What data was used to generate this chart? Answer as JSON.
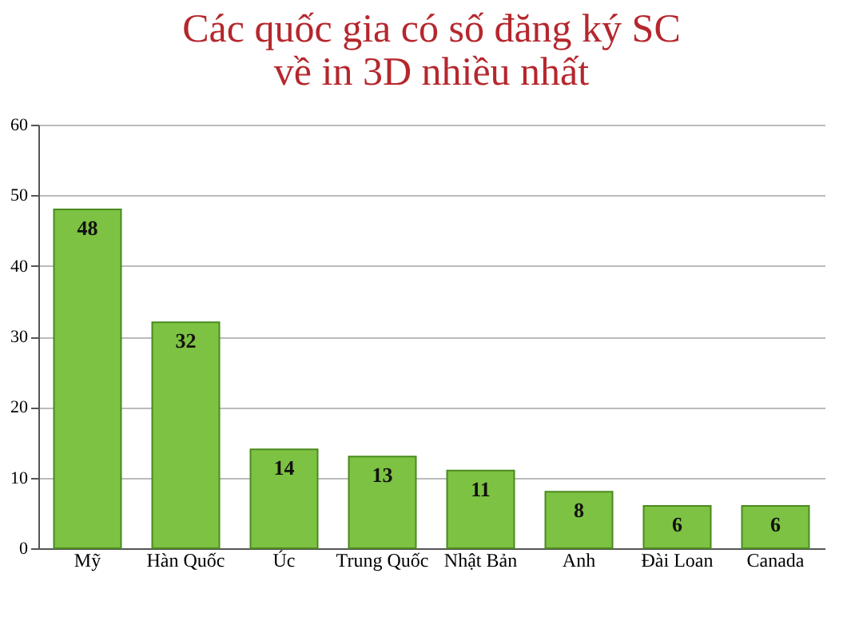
{
  "chart_data": {
    "type": "bar",
    "title": [
      "Các quốc gia có số đăng ký SC",
      "về in 3D nhiều nhất"
    ],
    "categories": [
      "Mỹ",
      "Hàn Quốc",
      "Úc",
      "Trung Quốc",
      "Nhật Bản",
      "Anh",
      "Đài Loan",
      "Canada"
    ],
    "values": [
      48,
      32,
      14,
      13,
      11,
      8,
      6,
      6
    ],
    "color": "#7dc242",
    "ylim": [
      0,
      60
    ],
    "yticks": [
      0,
      10,
      20,
      30,
      40,
      50,
      60
    ],
    "grid": "y",
    "data_labels": true
  }
}
